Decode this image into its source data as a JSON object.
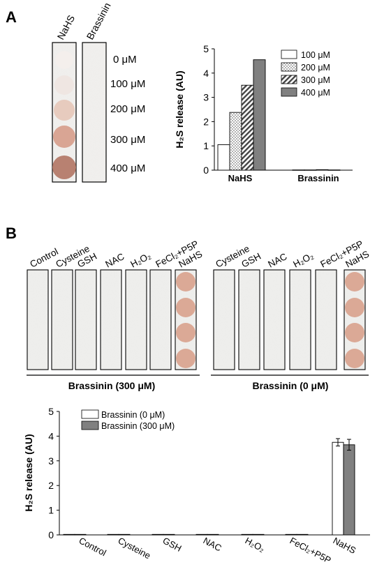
{
  "panel_a": {
    "letter": "A",
    "strip_labels": [
      "NaHS",
      "Brassinin"
    ],
    "conc_labels": [
      "0 μM",
      "100 μM",
      "200 μM",
      "300 μM",
      "400 μM"
    ],
    "spot_colors": [
      "#f3eeec",
      "#eee5e2",
      "#e6c8bc",
      "#d7a08f",
      "#b47a6a"
    ]
  },
  "panel_b": {
    "letter": "B",
    "strip_labels_left": [
      "Control",
      "Cysteine",
      "GSH",
      "NAC",
      "H₂O₂",
      "FeCl₂+P5P",
      "NaHS"
    ],
    "strip_labels_right": [
      "Cysteine",
      "GSH",
      "NAC",
      "H₂O₂",
      "FeCl₂+P5P",
      "NaHS"
    ],
    "group_left": "Brassinin (300 μM)",
    "group_right": "Brassinin (0 μM)",
    "spot_color": "#dba996"
  },
  "chart_data": [
    {
      "type": "bar",
      "categories": [
        "NaHS",
        "Brassinin"
      ],
      "series": [
        {
          "name": "100 μM",
          "values": [
            1.05,
            0.01
          ],
          "fill": "#ffffff"
        },
        {
          "name": "200 μM",
          "values": [
            2.38,
            0.01
          ],
          "fill": "dots"
        },
        {
          "name": "300 μM",
          "values": [
            3.5,
            0.02
          ],
          "fill": "hatch"
        },
        {
          "name": "400 μM",
          "values": [
            4.55,
            0.01
          ],
          "fill": "#808080"
        }
      ],
      "ylabel": "H₂S release (AU)",
      "ylim": [
        0,
        5
      ],
      "yticks": [
        0,
        1,
        2,
        3,
        4,
        5
      ],
      "legend": "top-right"
    },
    {
      "type": "bar",
      "categories": [
        "Control",
        "Cysteine",
        "GSH",
        "NAC",
        "H₂O₂",
        "FeCl₂+P5P",
        "NaHS"
      ],
      "series": [
        {
          "name": "Brassinin (0 μM)",
          "values": [
            0.02,
            0.02,
            0.02,
            0.02,
            0.02,
            0.02,
            3.75
          ],
          "errors": [
            0.01,
            0.01,
            0.01,
            0.01,
            0.02,
            0.01,
            0.15
          ],
          "fill": "#ffffff"
        },
        {
          "name": "Brassinin (300 μM)",
          "values": [
            0.02,
            0.02,
            0.02,
            0.02,
            0.02,
            0.02,
            3.65
          ],
          "errors": [
            0.01,
            0.01,
            0.01,
            0.01,
            0.02,
            0.01,
            0.22
          ],
          "fill": "#808080"
        }
      ],
      "ylabel": "H₂S release (AU)",
      "ylim": [
        0,
        5
      ],
      "yticks": [
        0,
        1,
        2,
        3,
        4,
        5
      ],
      "legend": "top-left"
    }
  ]
}
